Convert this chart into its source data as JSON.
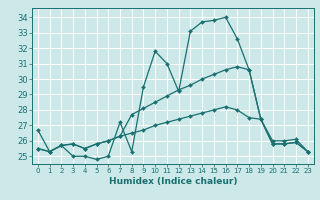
{
  "xlabel": "Humidex (Indice chaleur)",
  "background_color": "#cce8e8",
  "grid_color": "#ffffff",
  "line_color": "#1a7070",
  "xlim": [
    -0.5,
    23.5
  ],
  "ylim": [
    24.5,
    34.6
  ],
  "yticks": [
    25,
    26,
    27,
    28,
    29,
    30,
    31,
    32,
    33,
    34
  ],
  "xticks": [
    0,
    1,
    2,
    3,
    4,
    5,
    6,
    7,
    8,
    9,
    10,
    11,
    12,
    13,
    14,
    15,
    16,
    17,
    18,
    19,
    20,
    21,
    22,
    23
  ],
  "line1_y": [
    26.7,
    25.3,
    25.7,
    25.0,
    25.0,
    24.8,
    25.0,
    27.2,
    25.3,
    29.5,
    31.8,
    31.0,
    29.2,
    33.1,
    33.7,
    33.8,
    34.0,
    32.6,
    30.6,
    27.4,
    26.0,
    26.0,
    26.1,
    25.3
  ],
  "line2_y": [
    25.5,
    25.3,
    25.7,
    25.8,
    25.5,
    25.8,
    26.0,
    26.3,
    27.7,
    28.1,
    28.5,
    28.9,
    29.3,
    29.6,
    30.0,
    30.3,
    30.6,
    30.8,
    30.6,
    27.4,
    25.8,
    25.8,
    25.9,
    25.3
  ],
  "line3_y": [
    25.5,
    25.3,
    25.7,
    25.8,
    25.5,
    25.8,
    26.0,
    26.3,
    26.5,
    26.7,
    27.0,
    27.2,
    27.4,
    27.6,
    27.8,
    28.0,
    28.2,
    28.0,
    27.5,
    27.4,
    25.8,
    25.8,
    25.9,
    25.3
  ]
}
